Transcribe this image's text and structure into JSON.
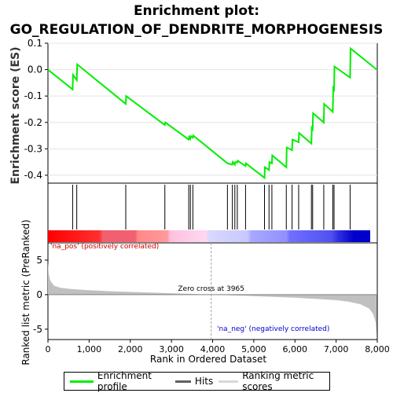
{
  "title_line1": "Enrichment plot:",
  "title_line2": "GO_REGULATION_OF_DENDRITE_MORPHOGENESIS",
  "colors": {
    "es_line": "#00ee00",
    "hits": "#000000",
    "ranking": "#c0c0c0",
    "bar_pos": "#ff0000",
    "bar_neg": "#0000ff"
  },
  "chart_data": [
    {
      "type": "line",
      "name": "enrichment-profile",
      "ylabel": "Enrichment score (ES)",
      "xlim": [
        0,
        8000
      ],
      "ylim": [
        -0.43,
        0.1
      ],
      "yticks": [
        0.1,
        0.0,
        -0.1,
        -0.2,
        -0.3,
        -0.4
      ],
      "ytick_labels": [
        "0.1",
        "0.0",
        "-0.1",
        "-0.2",
        "-0.3",
        "-0.4"
      ],
      "points": [
        [
          0,
          0.0
        ],
        [
          600,
          -0.075
        ],
        [
          610,
          -0.02
        ],
        [
          700,
          -0.04
        ],
        [
          710,
          0.02
        ],
        [
          1890,
          -0.13
        ],
        [
          1900,
          -0.1
        ],
        [
          2840,
          -0.21
        ],
        [
          2850,
          -0.2
        ],
        [
          3420,
          -0.265
        ],
        [
          3430,
          -0.255
        ],
        [
          3460,
          -0.262
        ],
        [
          3470,
          -0.252
        ],
        [
          3520,
          -0.258
        ],
        [
          3530,
          -0.25
        ],
        [
          4360,
          -0.355
        ],
        [
          4480,
          -0.36
        ],
        [
          4490,
          -0.35
        ],
        [
          4540,
          -0.36
        ],
        [
          4550,
          -0.35
        ],
        [
          4600,
          -0.352
        ],
        [
          4610,
          -0.345
        ],
        [
          4800,
          -0.365
        ],
        [
          4810,
          -0.355
        ],
        [
          5260,
          -0.41
        ],
        [
          5270,
          -0.37
        ],
        [
          5370,
          -0.38
        ],
        [
          5380,
          -0.35
        ],
        [
          5440,
          -0.355
        ],
        [
          5450,
          -0.325
        ],
        [
          5790,
          -0.37
        ],
        [
          5800,
          -0.295
        ],
        [
          5930,
          -0.305
        ],
        [
          5940,
          -0.265
        ],
        [
          6090,
          -0.275
        ],
        [
          6100,
          -0.24
        ],
        [
          6400,
          -0.28
        ],
        [
          6410,
          -0.22
        ],
        [
          6430,
          -0.225
        ],
        [
          6440,
          -0.165
        ],
        [
          6700,
          -0.2
        ],
        [
          6710,
          -0.13
        ],
        [
          6920,
          -0.16
        ],
        [
          6930,
          -0.07
        ],
        [
          6950,
          -0.075
        ],
        [
          6960,
          0.012
        ],
        [
          7340,
          -0.03
        ],
        [
          7350,
          0.08
        ],
        [
          7990,
          0.0
        ]
      ]
    },
    {
      "type": "bar",
      "name": "hits",
      "legend_label": "Hits",
      "x": [
        600,
        700,
        1890,
        2840,
        3420,
        3460,
        3520,
        4360,
        4480,
        4540,
        4600,
        4800,
        5260,
        5370,
        5440,
        5790,
        5930,
        6090,
        6400,
        6430,
        6700,
        6920,
        6950,
        7340
      ]
    },
    {
      "type": "area",
      "name": "ranked-list-metric",
      "xlabel": "Rank in Ordered Dataset",
      "ylabel": "Ranked list metric (PreRanked)",
      "xlim": [
        0,
        8000
      ],
      "ylim": [
        -6.5,
        7.5
      ],
      "xticks": [
        0,
        1000,
        2000,
        3000,
        4000,
        5000,
        6000,
        7000,
        8000
      ],
      "xtick_labels": [
        "0",
        "1,000",
        "2,000",
        "3,000",
        "4,000",
        "5,000",
        "6,000",
        "7,000",
        "8,000"
      ],
      "yticks": [
        5,
        0,
        -5
      ],
      "ytick_labels": [
        "5",
        "0",
        "-5"
      ],
      "points": [
        [
          0,
          4.8
        ],
        [
          20,
          3.0
        ],
        [
          60,
          2.0
        ],
        [
          150,
          1.3
        ],
        [
          300,
          1.0
        ],
        [
          600,
          0.8
        ],
        [
          1000,
          0.65
        ],
        [
          1500,
          0.5
        ],
        [
          2000,
          0.4
        ],
        [
          2500,
          0.3
        ],
        [
          3000,
          0.2
        ],
        [
          3500,
          0.1
        ],
        [
          3965,
          0.0
        ],
        [
          4500,
          -0.12
        ],
        [
          5000,
          -0.22
        ],
        [
          5500,
          -0.32
        ],
        [
          6000,
          -0.45
        ],
        [
          6500,
          -0.6
        ],
        [
          7000,
          -0.8
        ],
        [
          7300,
          -1.0
        ],
        [
          7600,
          -1.4
        ],
        [
          7800,
          -2.0
        ],
        [
          7900,
          -2.8
        ],
        [
          7960,
          -4.0
        ],
        [
          7990,
          -6.0
        ]
      ],
      "zero_cross_rank": 3965,
      "zero_cross_text": "Zero cross at 3965",
      "pos_label": "'na_pos' (positively correlated)",
      "neg_label": "'na_neg' (negatively correlated)"
    }
  ],
  "legend": {
    "enrichment": "Enrichment profile",
    "hits": "Hits",
    "ranking": "Ranking metric scores"
  }
}
